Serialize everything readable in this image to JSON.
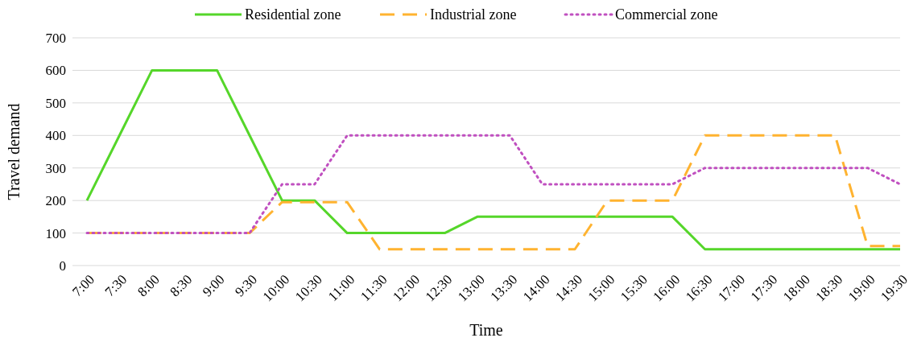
{
  "chart_data": {
    "type": "line",
    "xlabel": "Time",
    "ylabel": "Travel demand",
    "categories": [
      "7:00",
      "7:30",
      "8:00",
      "8:30",
      "9:00",
      "9:30",
      "10:00",
      "10:30",
      "11:00",
      "11:30",
      "12:00",
      "12:30",
      "13:00",
      "13:30",
      "14:00",
      "14:30",
      "15:00",
      "15:30",
      "16:00",
      "16:30",
      "17:00",
      "17:30",
      "18:00",
      "18:30",
      "19:00",
      "19:30"
    ],
    "series": [
      {
        "name": "Residential zone",
        "color": "#55d62a",
        "line_style": "solid",
        "values": [
          200,
          400,
          600,
          600,
          600,
          400,
          200,
          200,
          100,
          100,
          100,
          100,
          150,
          150,
          150,
          150,
          150,
          150,
          150,
          50,
          50,
          50,
          50,
          50,
          50,
          50
        ]
      },
      {
        "name": "Industrial zone",
        "color": "#ffb330",
        "line_style": "dashed",
        "values": [
          100,
          100,
          100,
          100,
          100,
          100,
          195,
          195,
          195,
          50,
          50,
          50,
          50,
          50,
          50,
          50,
          200,
          200,
          200,
          400,
          400,
          400,
          400,
          400,
          60,
          60
        ]
      },
      {
        "name": "Commercial zone",
        "color": "#c050c0",
        "line_style": "dotted",
        "values": [
          100,
          100,
          100,
          100,
          100,
          100,
          250,
          250,
          400,
          400,
          400,
          400,
          400,
          400,
          250,
          250,
          250,
          250,
          250,
          300,
          300,
          300,
          300,
          300,
          300,
          250
        ]
      }
    ],
    "ylim": [
      0,
      700
    ],
    "yticks": [
      0,
      100,
      200,
      300,
      400,
      500,
      600,
      700
    ],
    "grid": "y",
    "legend": "top",
    "marker": "none"
  }
}
